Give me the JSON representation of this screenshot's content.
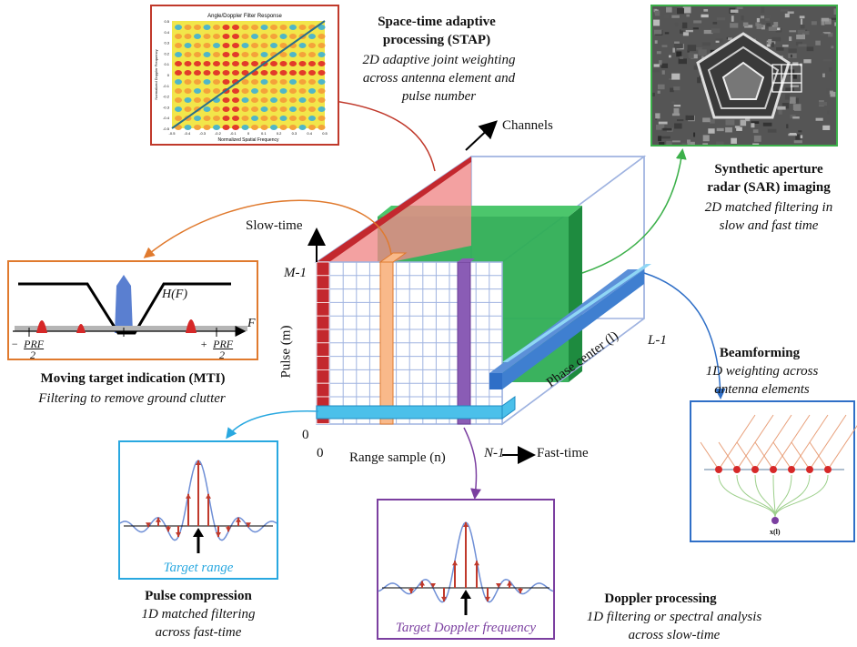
{
  "stap": {
    "title_line1": "Space-time adaptive",
    "title_line2": "processing (STAP)",
    "desc": [
      "2D adaptive joint weighting",
      "across antenna element and",
      "pulse number"
    ],
    "plot_title": "Angle/Doppler Filter Response",
    "plot_xlabel": "Normalized Spatial Frequency",
    "plot_ylabel": "Normalized Doppler Frequency",
    "x_ticks": [
      "-0.5",
      "-0.4",
      "-0.3",
      "-0.2",
      "-0.1",
      "0",
      "0.1",
      "0.2",
      "0.3",
      "0.4",
      "0.5"
    ],
    "y_ticks": [
      "0.5",
      "0.4",
      "0.3",
      "0.2",
      "0.1",
      "0",
      "-0.1",
      "-0.2",
      "-0.3",
      "-0.4",
      "-0.5"
    ],
    "colors": {
      "border": "#c0392b"
    }
  },
  "sar": {
    "title_line1": "Synthetic aperture",
    "title_line2": "radar (SAR) imaging",
    "desc": [
      "2D matched filtering in",
      "slow and fast time"
    ],
    "colors": {
      "border": "#3cb04a"
    }
  },
  "mti": {
    "title": "Moving target indication (MTI)",
    "desc": "Filtering to remove ground clutter",
    "hf_label": "H(F)",
    "f_label": "F",
    "left_tick": "PRF",
    "left_tick_prefix": "−",
    "left_tick_den": "2",
    "right_tick": "PRF",
    "right_tick_prefix": "+",
    "right_tick_den": "2",
    "colors": {
      "border": "#e07a2e"
    }
  },
  "beamforming": {
    "title": "Beamforming",
    "desc": [
      "1D weighting across",
      "antenna elements"
    ],
    "sum_label": "x(l)",
    "colors": {
      "border": "#2f6fc7"
    }
  },
  "pulse_compression": {
    "title": "Pulse compression",
    "desc": [
      "1D matched filtering",
      "across fast-time"
    ],
    "caption": "Target range",
    "colors": {
      "border": "#29a8e0",
      "caption": "#29a8e0"
    }
  },
  "doppler": {
    "title": "Doppler processing",
    "desc": [
      "1D filtering or spectral analysis",
      "across slow-time"
    ],
    "caption": "Target Doppler frequency",
    "colors": {
      "border": "#7b3fa0",
      "caption": "#7b3fa0"
    }
  },
  "cube": {
    "channels": "Channels",
    "slow_time": "Slow-time",
    "m1": "M-1",
    "pulse_axis": "Pulse (m)",
    "zero_left": "0",
    "zero_bottom": "0",
    "range_sample": "Range sample (n)",
    "n1": "N-1",
    "fast_time": "Fast-time",
    "phase_center": "Phase center (l)",
    "l1": "L-1"
  }
}
